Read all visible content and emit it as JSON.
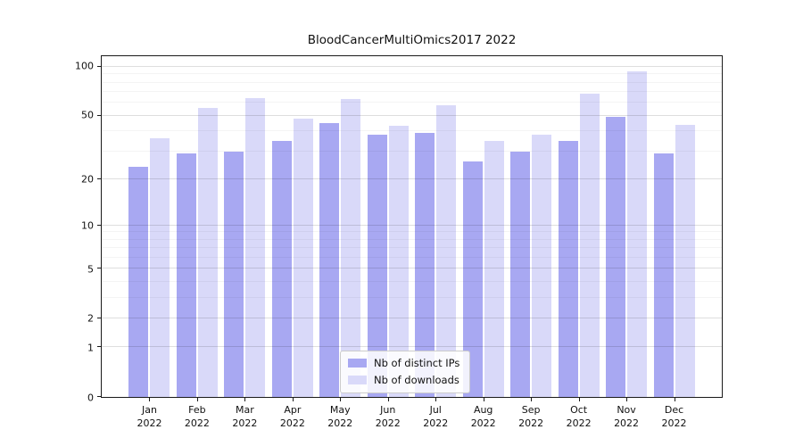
{
  "chart_data": {
    "type": "bar",
    "title": "BloodCancerMultiOmics2017 2022",
    "scale": "log10(1+y) symlog-like",
    "year": "2022",
    "categories": [
      "Jan",
      "Feb",
      "Mar",
      "Apr",
      "May",
      "Jun",
      "Jul",
      "Aug",
      "Sep",
      "Oct",
      "Nov",
      "Dec"
    ],
    "series": [
      {
        "name": "Nb of distinct IPs",
        "color": "#a8a8f2",
        "values": [
          24,
          29,
          30,
          35,
          45,
          38,
          39,
          26,
          30,
          35,
          49,
          29
        ]
      },
      {
        "name": "Nb of downloads",
        "color": "#d9d9f9",
        "values": [
          36,
          56,
          64,
          48,
          63,
          43,
          58,
          35,
          38,
          68,
          94,
          44
        ]
      }
    ],
    "yticks": [
      0,
      1,
      2,
      5,
      10,
      20,
      50,
      100
    ],
    "minor_yticks": [
      3,
      4,
      6,
      7,
      8,
      9,
      30,
      40,
      60,
      70,
      80,
      90
    ],
    "ylim": [
      0,
      116
    ],
    "xlabel": "",
    "ylabel": "",
    "grid": true,
    "legend_position": "lower center"
  }
}
